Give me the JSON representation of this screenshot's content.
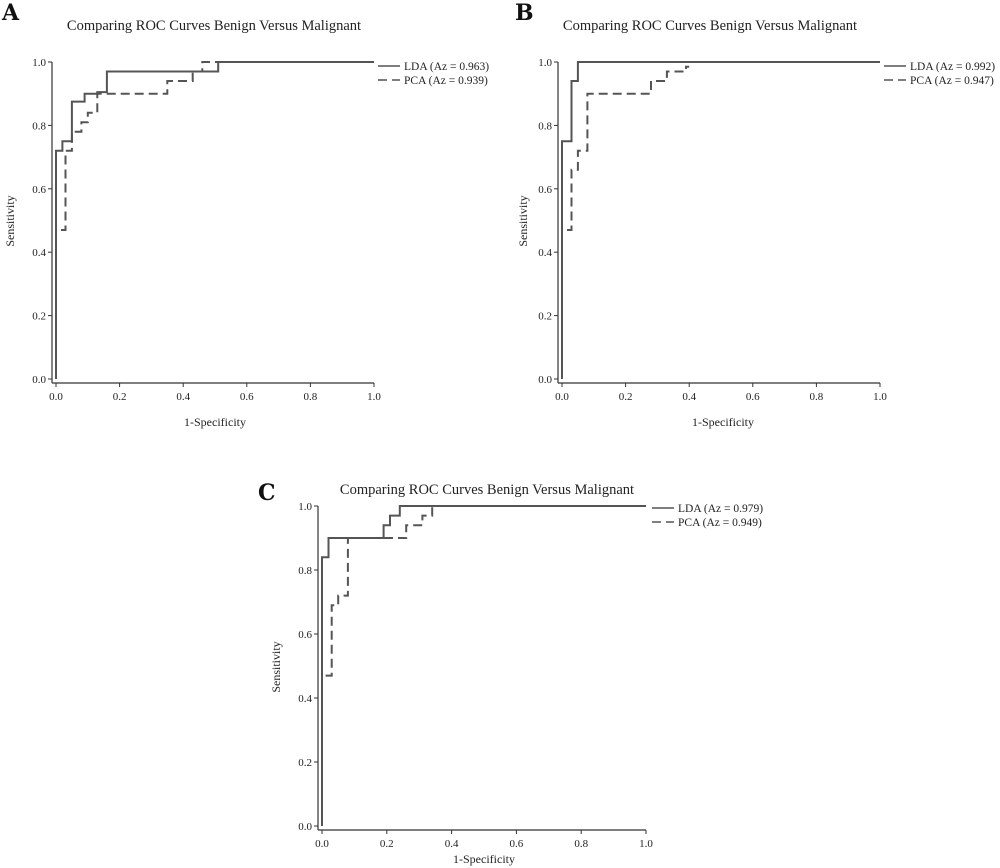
{
  "chart_data": [
    {
      "type": "line",
      "panel": "A",
      "title": "Comparing ROC Curves Benign Versus Malignant",
      "xlabel": "1-Specificity",
      "ylabel": "Sensitivity",
      "xlim": [
        0,
        1
      ],
      "ylim": [
        0,
        1
      ],
      "xticks": [
        "0.0",
        "0.2",
        "0.4",
        "0.6",
        "0.8",
        "1.0"
      ],
      "yticks": [
        "0.0",
        "0.2",
        "0.4",
        "0.6",
        "0.8",
        "1.0"
      ],
      "grid": false,
      "legend_position": "top-right",
      "series": [
        {
          "name": "LDA (Az = 0.963)",
          "style": "solid",
          "points": [
            [
              0,
              0
            ],
            [
              0,
              0.72
            ],
            [
              0.02,
              0.72
            ],
            [
              0.02,
              0.75
            ],
            [
              0.05,
              0.75
            ],
            [
              0.05,
              0.875
            ],
            [
              0.09,
              0.875
            ],
            [
              0.09,
              0.9
            ],
            [
              0.13,
              0.9
            ],
            [
              0.13,
              0.905
            ],
            [
              0.16,
              0.905
            ],
            [
              0.16,
              0.97
            ],
            [
              0.51,
              0.97
            ],
            [
              0.51,
              1.0
            ],
            [
              1.0,
              1.0
            ]
          ]
        },
        {
          "name": "PCA (Az = 0.939)",
          "style": "dashed",
          "points": [
            [
              0,
              0
            ],
            [
              0,
              0.47
            ],
            [
              0.03,
              0.47
            ],
            [
              0.03,
              0.72
            ],
            [
              0.05,
              0.72
            ],
            [
              0.05,
              0.78
            ],
            [
              0.08,
              0.78
            ],
            [
              0.08,
              0.81
            ],
            [
              0.1,
              0.81
            ],
            [
              0.1,
              0.84
            ],
            [
              0.13,
              0.84
            ],
            [
              0.13,
              0.9
            ],
            [
              0.35,
              0.9
            ],
            [
              0.35,
              0.94
            ],
            [
              0.43,
              0.94
            ],
            [
              0.43,
              0.97
            ],
            [
              0.46,
              0.97
            ],
            [
              0.46,
              1.0
            ],
            [
              1.0,
              1.0
            ]
          ]
        }
      ]
    },
    {
      "type": "line",
      "panel": "B",
      "title": "Comparing ROC Curves Benign Versus Malignant",
      "xlabel": "1-Specificity",
      "ylabel": "Sensitivity",
      "xlim": [
        0,
        1
      ],
      "ylim": [
        0,
        1
      ],
      "xticks": [
        "0.0",
        "0.2",
        "0.4",
        "0.6",
        "0.8",
        "1.0"
      ],
      "yticks": [
        "0.0",
        "0.2",
        "0.4",
        "0.6",
        "0.8",
        "1.0"
      ],
      "grid": false,
      "legend_position": "top-right",
      "series": [
        {
          "name": "LDA (Az = 0.992)",
          "style": "solid",
          "points": [
            [
              0,
              0
            ],
            [
              0,
              0.75
            ],
            [
              0.03,
              0.75
            ],
            [
              0.03,
              0.94
            ],
            [
              0.05,
              0.94
            ],
            [
              0.05,
              1.0
            ],
            [
              1.0,
              1.0
            ]
          ]
        },
        {
          "name": "PCA (Az = 0.947)",
          "style": "dashed",
          "points": [
            [
              0,
              0
            ],
            [
              0,
              0.47
            ],
            [
              0.03,
              0.47
            ],
            [
              0.03,
              0.66
            ],
            [
              0.05,
              0.66
            ],
            [
              0.05,
              0.72
            ],
            [
              0.08,
              0.72
            ],
            [
              0.08,
              0.9
            ],
            [
              0.28,
              0.9
            ],
            [
              0.28,
              0.94
            ],
            [
              0.33,
              0.94
            ],
            [
              0.33,
              0.97
            ],
            [
              0.39,
              0.97
            ],
            [
              0.39,
              0.985
            ],
            [
              0.4,
              0.985
            ]
          ]
        }
      ]
    },
    {
      "type": "line",
      "panel": "C",
      "title": "Comparing ROC Curves Benign Versus Malignant",
      "xlabel": "1-Specificity",
      "ylabel": "Sensitivity",
      "xlim": [
        0,
        1
      ],
      "ylim": [
        0,
        1
      ],
      "xticks": [
        "0.0",
        "0.2",
        "0.4",
        "0.6",
        "0.8",
        "1.0"
      ],
      "yticks": [
        "0.0",
        "0.2",
        "0.4",
        "0.6",
        "0.8",
        "1.0"
      ],
      "grid": false,
      "legend_position": "top-right",
      "series": [
        {
          "name": "LDA (Az = 0.979)",
          "style": "solid",
          "points": [
            [
              0,
              0
            ],
            [
              0,
              0.84
            ],
            [
              0.02,
              0.84
            ],
            [
              0.02,
              0.9
            ],
            [
              0.19,
              0.9
            ],
            [
              0.19,
              0.94
            ],
            [
              0.21,
              0.94
            ],
            [
              0.21,
              0.97
            ],
            [
              0.24,
              0.97
            ],
            [
              0.24,
              1.0
            ],
            [
              1.0,
              1.0
            ]
          ]
        },
        {
          "name": "PCA (Az = 0.949)",
          "style": "dashed",
          "points": [
            [
              0,
              0
            ],
            [
              0,
              0.47
            ],
            [
              0.03,
              0.47
            ],
            [
              0.03,
              0.69
            ],
            [
              0.05,
              0.69
            ],
            [
              0.05,
              0.72
            ],
            [
              0.08,
              0.72
            ],
            [
              0.08,
              0.9
            ],
            [
              0.26,
              0.9
            ],
            [
              0.26,
              0.94
            ],
            [
              0.31,
              0.94
            ],
            [
              0.31,
              0.97
            ],
            [
              0.34,
              0.97
            ],
            [
              0.34,
              1.0
            ],
            [
              1.0,
              1.0
            ]
          ]
        }
      ]
    }
  ]
}
